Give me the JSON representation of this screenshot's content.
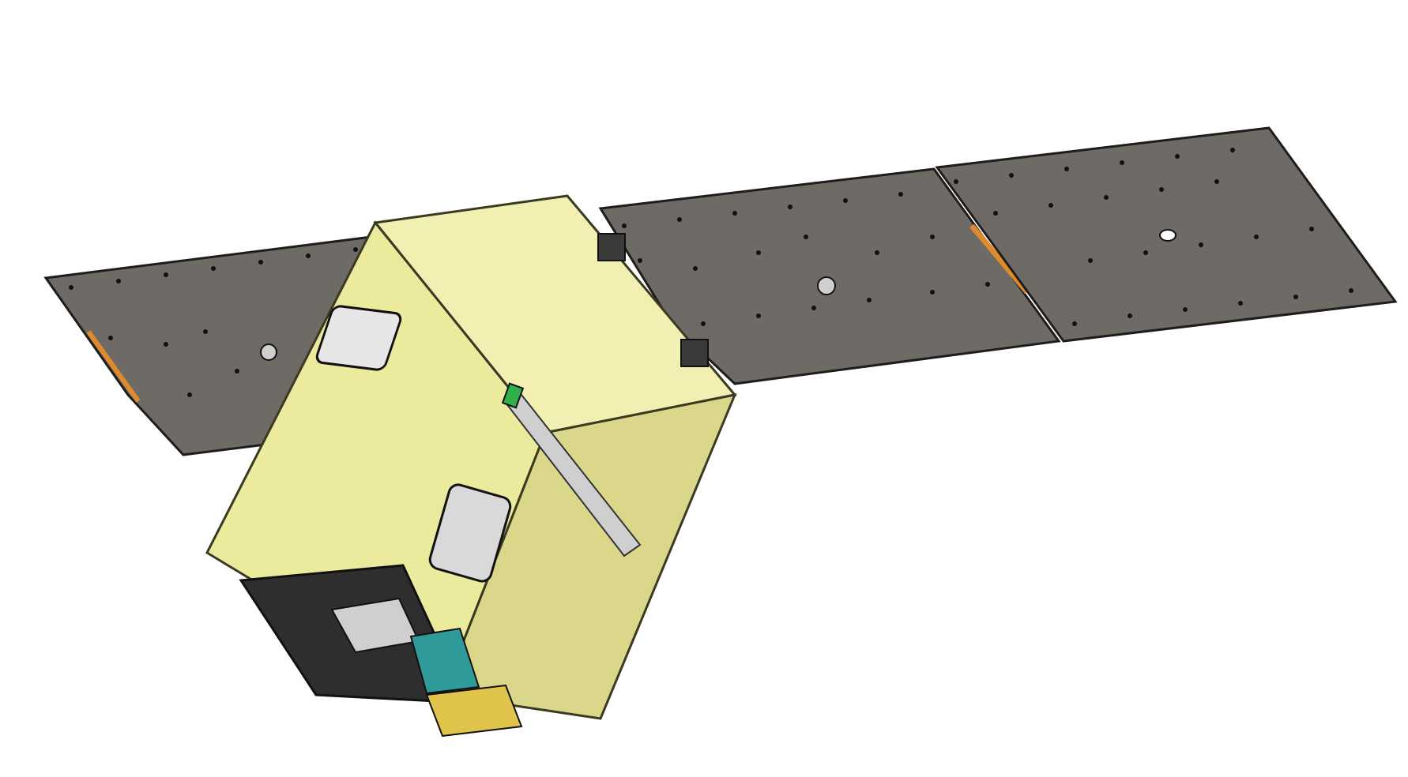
{
  "scene": {
    "subject": "satellite-render",
    "colors": {
      "background": "#ffffff",
      "solar_panel": "#6e6a66",
      "solar_panel_edge": "#2a2826",
      "bus_body": "#ecea9c",
      "bus_body_light": "#f4f2b8",
      "bus_body_shade": "#cfcc7a",
      "bus_edge": "#3a3a22",
      "window": "#d8d8d8",
      "hinge_strip": "#e08a2c",
      "interior_dark": "#2e2e2e",
      "interior_teal": "#2f9a9a",
      "rail": "#bdbdbd",
      "connector_green": "#2fb04a",
      "fastener": "#111111"
    },
    "icons": [
      "solar-panel-left",
      "solar-panel-right-inner",
      "solar-panel-right-outer",
      "satellite-bus",
      "access-window",
      "payload-bay",
      "hinge-bracket"
    ]
  }
}
